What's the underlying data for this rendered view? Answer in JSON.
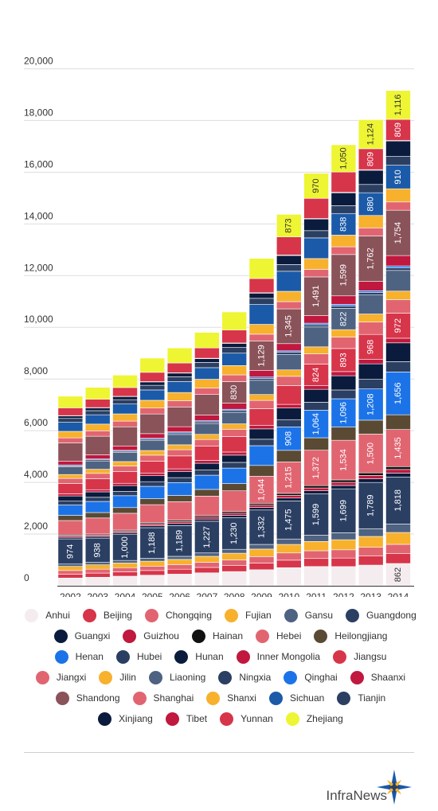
{
  "chart_data": {
    "type": "bar",
    "stacked": true,
    "categories": [
      "2002",
      "2003",
      "2004",
      "2005",
      "2006",
      "2007",
      "2008",
      "2009",
      "2010",
      "2011",
      "2012",
      "2013",
      "2014"
    ],
    "yticks": [
      "0",
      "2,000",
      "4,000",
      "6,000",
      "8,000",
      "10,000",
      "12,000",
      "14,000",
      "16,000",
      "18,000",
      "20,000"
    ],
    "ylim": [
      0,
      21000
    ],
    "grid": true,
    "legend_position": "bottom",
    "series": [
      {
        "name": "Anhui",
        "color": "#f4ecee",
        "values": [
          300,
          330,
          370,
          410,
          450,
          500,
          550,
          620,
          700,
          745,
          742,
          799,
          862
        ]
      },
      {
        "name": "Beijing",
        "color": "#d7354a",
        "values": [
          150,
          160,
          170,
          180,
          190,
          210,
          230,
          260,
          290,
          310,
          330,
          350,
          380
        ]
      },
      {
        "name": "Chongqing",
        "color": "#e16571",
        "values": [
          140,
          150,
          160,
          170,
          180,
          200,
          220,
          250,
          280,
          300,
          320,
          340,
          360
        ]
      },
      {
        "name": "Fujian",
        "color": "#f7b12d",
        "values": [
          160,
          170,
          180,
          190,
          200,
          230,
          260,
          290,
          330,
          360,
          390,
          420,
          460
        ]
      },
      {
        "name": "Gansu",
        "color": "#4e6282",
        "values": [
          90,
          95,
          100,
          110,
          120,
          130,
          150,
          180,
          210,
          240,
          270,
          300,
          330
        ]
      },
      {
        "name": "Guangdong",
        "color": "#2b3f63",
        "values": [
          974,
          938,
          1000,
          1188,
          1189,
          1227,
          1230,
          1332,
          1475,
          1599,
          1699,
          1789,
          1818
        ]
      },
      {
        "name": "Guangxi",
        "color": "#0a1b3d",
        "values": [
          60,
          65,
          70,
          75,
          80,
          85,
          90,
          100,
          110,
          120,
          130,
          140,
          150
        ]
      },
      {
        "name": "Guizhou",
        "color": "#c0183e",
        "values": [
          50,
          55,
          60,
          65,
          70,
          75,
          80,
          90,
          100,
          110,
          120,
          130,
          140
        ]
      },
      {
        "name": "Hainan",
        "color": "#111111",
        "values": [
          40,
          40,
          45,
          50,
          55,
          60,
          65,
          70,
          80,
          90,
          95,
          100,
          110
        ]
      },
      {
        "name": "Hebei",
        "color": "#e16571",
        "values": [
          560,
          620,
          650,
          700,
          720,
          751,
          799,
          1044,
          1215,
          1372,
          1534,
          1500,
          1435
        ]
      },
      {
        "name": "Heilongjiang",
        "color": "#5a4a33",
        "values": [
          200,
          210,
          220,
          230,
          240,
          260,
          280,
          420,
          450,
          480,
          510,
          540,
          570
        ]
      },
      {
        "name": "Henan",
        "color": "#1c73e8",
        "values": [
          400,
          430,
          460,
          480,
          500,
          550,
          600,
          764,
          908,
          1064,
          1096,
          1208,
          1656
        ]
      },
      {
        "name": "Hubei",
        "color": "#2b3f63",
        "values": [
          150,
          160,
          170,
          180,
          190,
          200,
          220,
          250,
          280,
          310,
          340,
          370,
          400
        ]
      },
      {
        "name": "Hunan",
        "color": "#0a1b3d",
        "values": [
          200,
          210,
          220,
          230,
          240,
          260,
          280,
          400,
          450,
          500,
          550,
          600,
          727
        ]
      },
      {
        "name": "Inner Mongolia",
        "color": "#c0183e",
        "values": [
          80,
          85,
          90,
          95,
          100,
          110,
          120,
          130,
          140,
          150,
          160,
          170,
          180
        ]
      },
      {
        "name": "Jiangsu",
        "color": "#d7354a",
        "values": [
          400,
          420,
          450,
          470,
          500,
          550,
          600,
          650,
          725,
          824,
          893,
          968,
          972
        ]
      },
      {
        "name": "Jiangxi",
        "color": "#e16571",
        "values": [
          200,
          210,
          220,
          230,
          240,
          260,
          280,
          320,
          360,
          400,
          440,
          480,
          520
        ]
      },
      {
        "name": "Jilin",
        "color": "#f7b12d",
        "values": [
          150,
          160,
          170,
          180,
          190,
          200,
          210,
          230,
          250,
          270,
          290,
          310,
          330
        ]
      },
      {
        "name": "Liaoning",
        "color": "#4e6282",
        "values": [
          300,
          320,
          350,
          380,
          400,
          420,
          450,
          550,
          600,
          769,
          822,
          735,
          800
        ]
      },
      {
        "name": "Ningxia",
        "color": "#2b3f63",
        "values": [
          40,
          45,
          50,
          55,
          60,
          65,
          70,
          75,
          80,
          85,
          90,
          95,
          100
        ]
      },
      {
        "name": "Qinghai",
        "color": "#1c73e8",
        "values": [
          30,
          32,
          35,
          38,
          40,
          42,
          45,
          50,
          55,
          60,
          65,
          70,
          75
        ]
      },
      {
        "name": "Shaanxi",
        "color": "#c0183e",
        "values": [
          150,
          160,
          170,
          180,
          200,
          220,
          240,
          260,
          280,
          300,
          330,
          360,
          400
        ]
      },
      {
        "name": "Shandong",
        "color": "#8a5259",
        "values": [
          700,
          720,
          740,
          760,
          764,
          794,
          830,
          1129,
          1345,
          1491,
          1599,
          1762,
          1754
        ]
      },
      {
        "name": "Shanghai",
        "color": "#e16571",
        "values": [
          200,
          210,
          220,
          230,
          240,
          250,
          260,
          270,
          280,
          290,
          300,
          310,
          320
        ]
      },
      {
        "name": "Shanxi",
        "color": "#f7b12d",
        "values": [
          250,
          260,
          280,
          300,
          320,
          340,
          360,
          380,
          400,
          420,
          450,
          480,
          510
        ]
      },
      {
        "name": "Sichuan",
        "color": "#1b5aa8",
        "values": [
          350,
          360,
          380,
          400,
          420,
          450,
          480,
          767,
          775,
          800,
          838,
          880,
          910
        ]
      },
      {
        "name": "Tianjin",
        "color": "#2b3f63",
        "values": [
          150,
          160,
          170,
          180,
          190,
          200,
          220,
          240,
          260,
          280,
          300,
          320,
          340
        ]
      },
      {
        "name": "Xinjiang",
        "color": "#0a1b3d",
        "values": [
          100,
          110,
          120,
          130,
          140,
          150,
          160,
          200,
          350,
          450,
          500,
          550,
          600
        ]
      },
      {
        "name": "Tibet",
        "color": "#c0183e",
        "values": [
          10,
          10,
          10,
          12,
          12,
          14,
          14,
          16,
          18,
          20,
          22,
          24,
          26
        ]
      },
      {
        "name": "Yunnan",
        "color": "#d7354a",
        "values": [
          300,
          320,
          340,
          360,
          380,
          400,
          500,
          550,
          700,
          779,
          785,
          809,
          809
        ]
      },
      {
        "name": "Zhejiang",
        "color": "#eef533",
        "values": [
          450,
          460,
          480,
          550,
          580,
          600,
          700,
          780,
          873,
          970,
          1050,
          1124,
          1116
        ]
      }
    ]
  },
  "brand": {
    "name": "InfraNews",
    "star_colors": [
      "#1b5aa8",
      "#f7b12d",
      "#2b3f63"
    ]
  }
}
